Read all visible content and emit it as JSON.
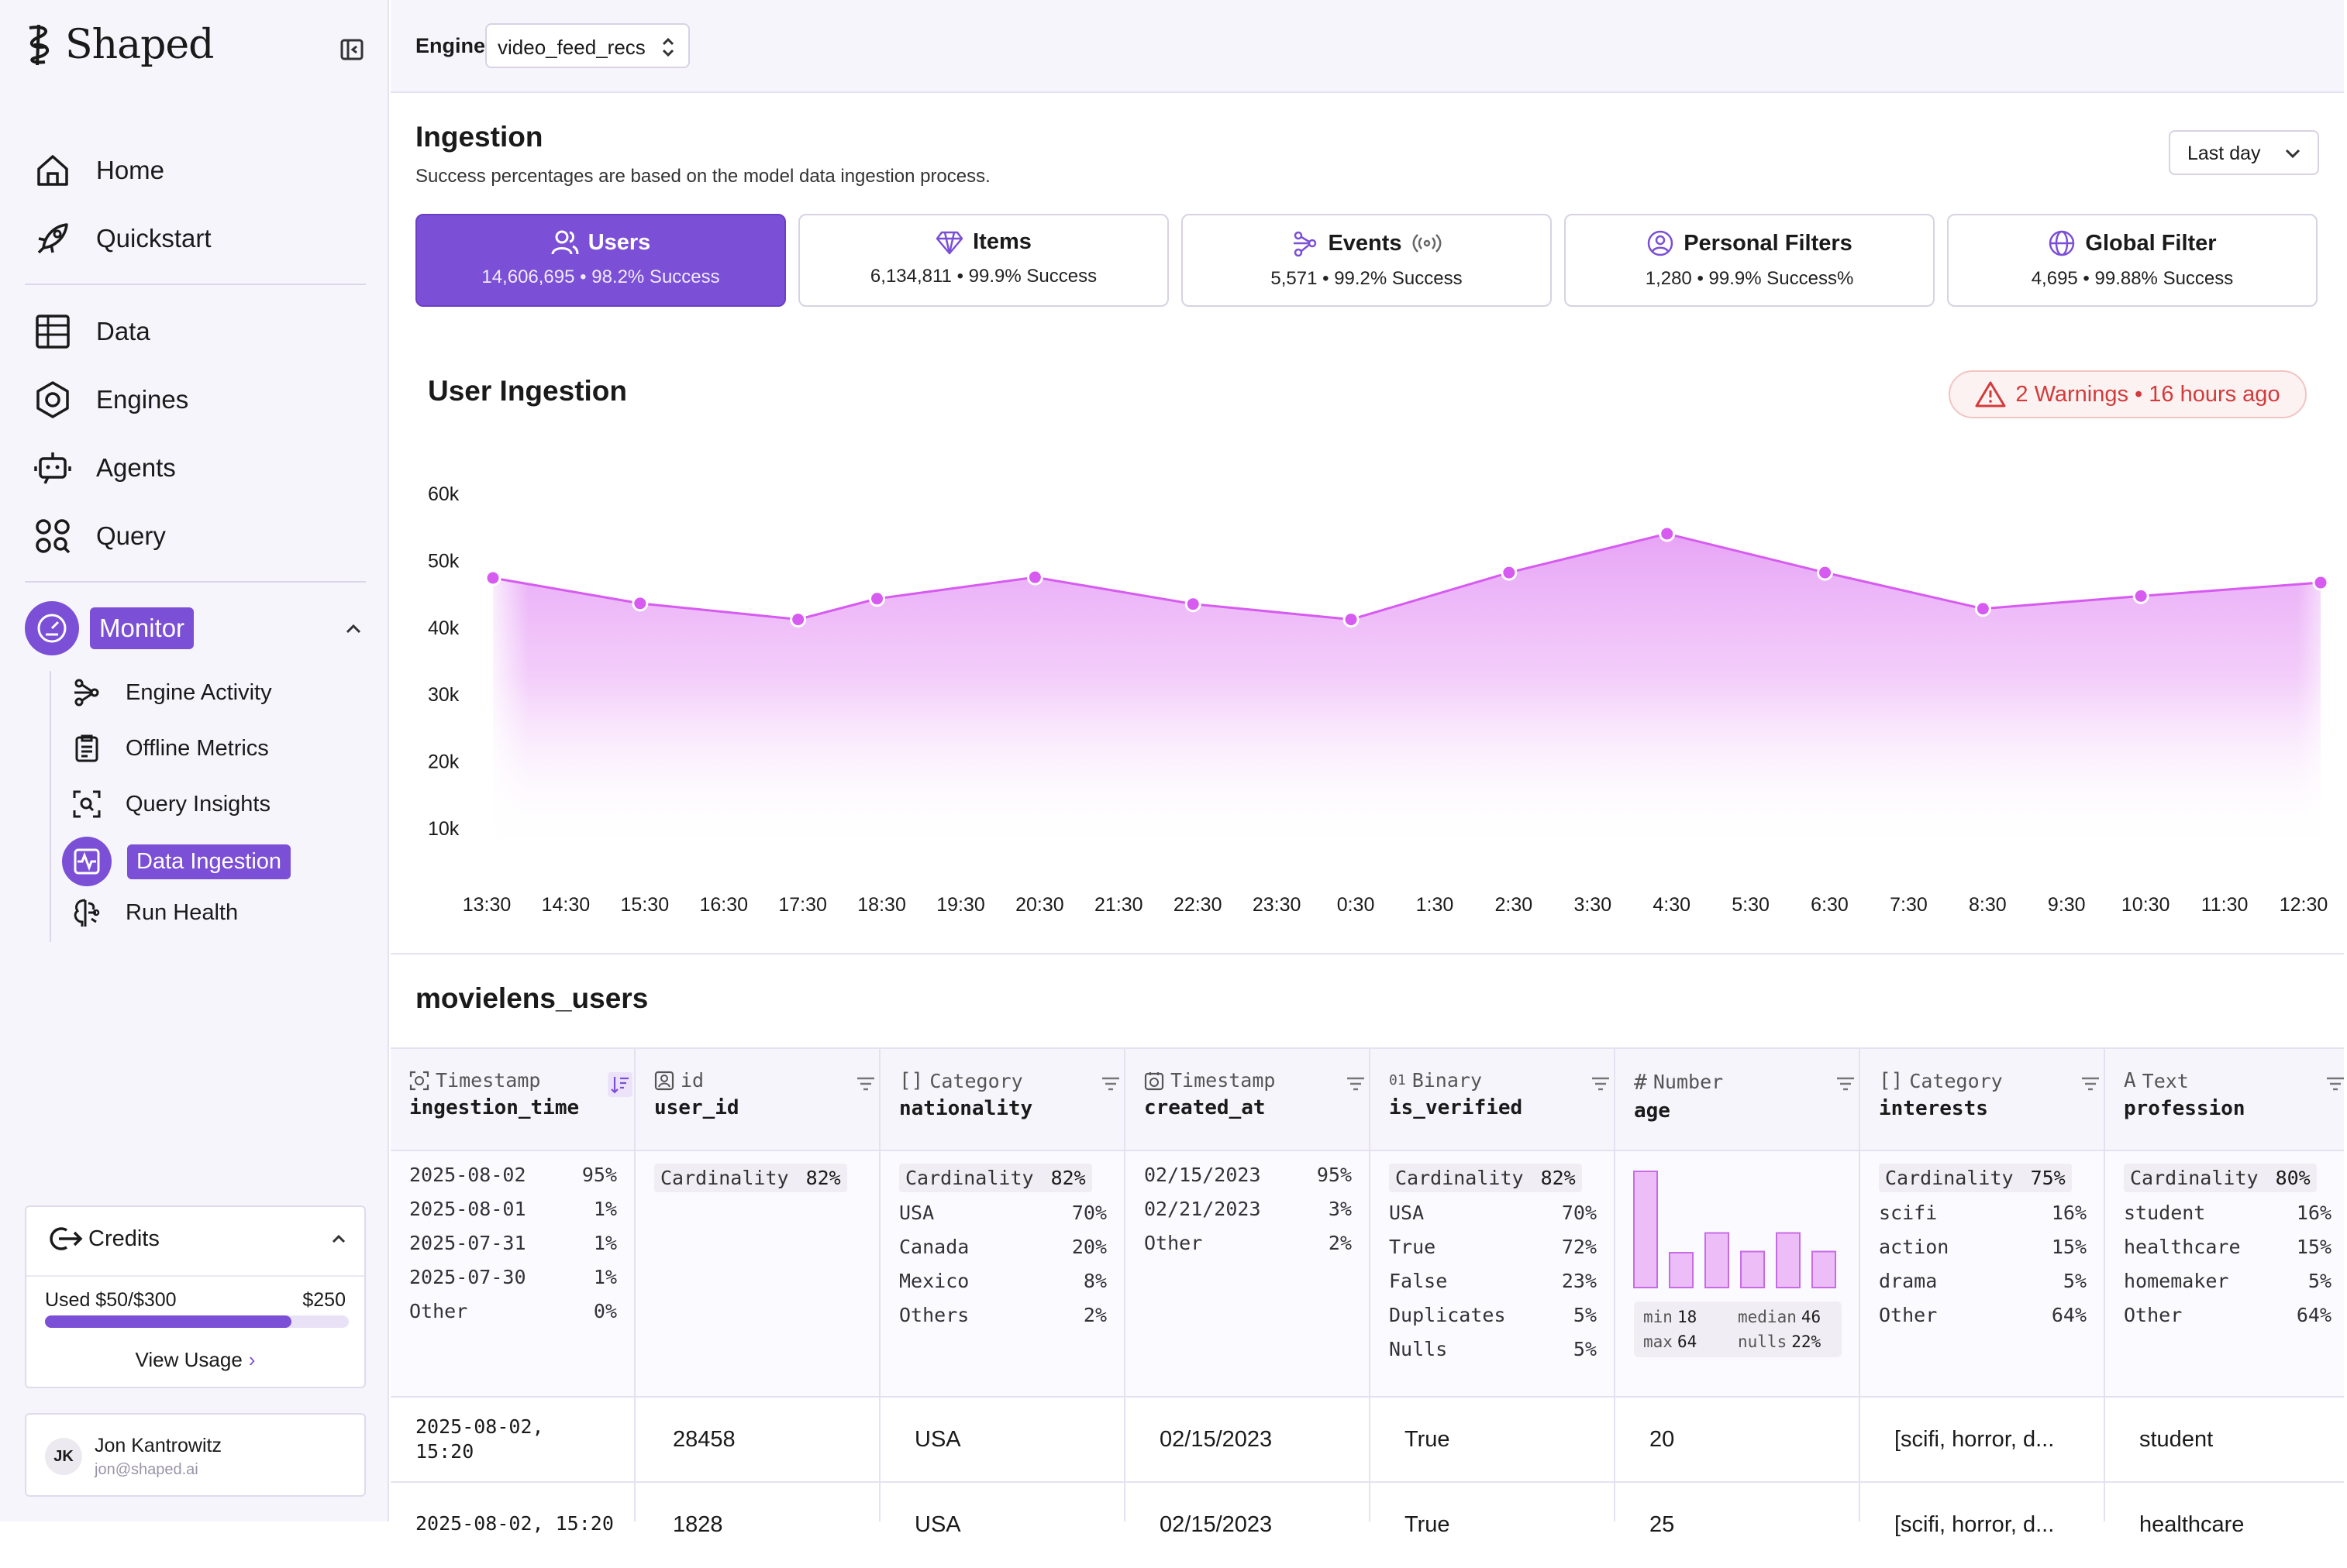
{
  "app": {
    "brand": "Shaped"
  },
  "sidebar": {
    "nav": [
      {
        "label": "Home",
        "icon": "home-icon"
      },
      {
        "label": "Quickstart",
        "icon": "rocket-icon"
      },
      {
        "label": "Data",
        "icon": "table-icon"
      },
      {
        "label": "Engines",
        "icon": "hexagon-icon"
      },
      {
        "label": "Agents",
        "icon": "robot-icon"
      },
      {
        "label": "Query",
        "icon": "query-icon"
      }
    ],
    "monitor": {
      "label": "Monitor",
      "items": [
        {
          "label": "Engine Activity",
          "icon": "activity-icon"
        },
        {
          "label": "Offline Metrics",
          "icon": "clipboard-icon"
        },
        {
          "label": "Query Insights",
          "icon": "scan-search-icon"
        },
        {
          "label": "Data Ingestion",
          "icon": "pulse-icon",
          "active": true
        },
        {
          "label": "Run Health",
          "icon": "brain-icon"
        }
      ]
    },
    "credits": {
      "title": "Credits",
      "used": "Used $50/$300",
      "limit": "$250",
      "fraction": 0.81,
      "view_usage": "View Usage"
    },
    "user": {
      "initials": "JK",
      "name": "Jon Kantrowitz",
      "email": "jon@shaped.ai"
    }
  },
  "topbar": {
    "engine_label": "Engine",
    "engine_value": "video_feed_recs"
  },
  "ingestion": {
    "title": "Ingestion",
    "subtitle": "Success percentages are based on the model data ingestion process.",
    "period": "Last day",
    "cards": [
      {
        "title": "Users",
        "stat": "14,606,695 • 98.2% Success",
        "icon": "users-icon",
        "active": true
      },
      {
        "title": "Items",
        "stat": "6,134,811 • 99.9% Success",
        "icon": "diamond-icon"
      },
      {
        "title": "Events",
        "stat": "5,571 • 99.2% Success",
        "icon": "events-icon"
      },
      {
        "title": "Personal Filters",
        "stat": "1,280 • 99.9% Success%",
        "icon": "user-circle-icon"
      },
      {
        "title": "Global Filter",
        "stat": "4,695 • 99.88% Success",
        "icon": "globe-icon"
      }
    ]
  },
  "chart_section": {
    "title": "User Ingestion",
    "warning": "2 Warnings • 16 hours ago"
  },
  "chart_data": {
    "type": "area",
    "title": "User Ingestion",
    "x": [
      "13:30",
      "14:30",
      "15:30",
      "16:30",
      "17:30",
      "18:30",
      "19:30",
      "20:30",
      "21:30",
      "22:30",
      "23:30",
      "0:30",
      "1:30",
      "2:30",
      "3:30",
      "4:30",
      "5:30",
      "6:30",
      "7:30",
      "8:30",
      "9:30",
      "10:30",
      "11:30",
      "12:30"
    ],
    "y_ticks": [
      "10k",
      "20k",
      "30k",
      "40k",
      "50k",
      "60k"
    ],
    "ylim": [
      10000,
      60000
    ],
    "points": [
      {
        "x": "13:30",
        "y": 47500
      },
      {
        "x": "15:30",
        "y": 43700
      },
      {
        "x": "17:30",
        "y": 41300
      },
      {
        "x": "18:30",
        "y": 44400
      },
      {
        "x": "20:30",
        "y": 47600
      },
      {
        "x": "22:30",
        "y": 43600
      },
      {
        "x": "0:30",
        "y": 41300
      },
      {
        "x": "2:30",
        "y": 48300
      },
      {
        "x": "4:30",
        "y": 54100
      },
      {
        "x": "6:30",
        "y": 48300
      },
      {
        "x": "8:30",
        "y": 42900
      },
      {
        "x": "10:30",
        "y": 44800
      },
      {
        "x": "12:30",
        "y": 46800
      }
    ],
    "color": "#d75bf0"
  },
  "table": {
    "title": "movielens_users",
    "columns": [
      {
        "type": "Timestamp",
        "name": "ingestion_time",
        "icon": "timestamp-icon"
      },
      {
        "type": "id",
        "name": "user_id",
        "icon": "id-icon"
      },
      {
        "type": "Category",
        "name": "nationality",
        "icon": "category-icon"
      },
      {
        "type": "Timestamp",
        "name": "created_at",
        "icon": "clock-icon"
      },
      {
        "type": "Binary",
        "name": "is_verified",
        "icon": "binary-icon"
      },
      {
        "type": "Number",
        "name": "age",
        "icon": "hash-icon"
      },
      {
        "type": "Category",
        "name": "interests",
        "icon": "category-icon"
      },
      {
        "type": "Text",
        "name": "profession",
        "icon": "text-icon"
      }
    ],
    "stats": {
      "ingestion_time": [
        [
          "2025-08-02",
          "95%"
        ],
        [
          "2025-08-01",
          "1%"
        ],
        [
          "2025-07-31",
          "1%"
        ],
        [
          "2025-07-30",
          "1%"
        ],
        [
          "Other",
          "0%"
        ]
      ],
      "user_id": {
        "cardinality_label": "Cardinality",
        "cardinality": "82%"
      },
      "nationality": {
        "cardinality_label": "Cardinality",
        "cardinality": "82%",
        "rows": [
          [
            "USA",
            "70%"
          ],
          [
            "Canada",
            "20%"
          ],
          [
            "Mexico",
            "8%"
          ],
          [
            "Others",
            "2%"
          ]
        ]
      },
      "created_at": [
        [
          "02/15/2023",
          "95%"
        ],
        [
          "02/21/2023",
          "3%"
        ],
        [
          "Other",
          "2%"
        ]
      ],
      "is_verified": {
        "cardinality_label": "Cardinality",
        "cardinality": "82%",
        "rows": [
          [
            "USA",
            "70%"
          ],
          [
            "True",
            "72%"
          ],
          [
            "False",
            "23%"
          ],
          [
            "Duplicates",
            "5%"
          ],
          [
            "Nulls",
            "5%"
          ]
        ]
      },
      "age": {
        "histogram": [
          1.0,
          0.3,
          0.47,
          0.31,
          0.47,
          0.31
        ],
        "min_label": "min",
        "min": "18",
        "median_label": "median",
        "median": "46",
        "max_label": "max",
        "max": "64",
        "nulls_label": "nulls",
        "nulls": "22%"
      },
      "interests": {
        "cardinality_label": "Cardinality",
        "cardinality": "75%",
        "rows": [
          [
            "scifi",
            "16%"
          ],
          [
            "action",
            "15%"
          ],
          [
            "drama",
            "5%"
          ],
          [
            "Other",
            "64%"
          ]
        ]
      },
      "profession": {
        "cardinality_label": "Cardinality",
        "cardinality": "80%",
        "rows": [
          [
            "student",
            "16%"
          ],
          [
            "healthcare",
            "15%"
          ],
          [
            "homemaker",
            "5%"
          ],
          [
            "Other",
            "64%"
          ]
        ]
      }
    },
    "rows": [
      [
        "2025-08-02,\n15:20",
        "28458",
        "USA",
        "02/15/2023",
        "True",
        "20",
        "[scifi, horror, d...",
        "student"
      ],
      [
        "2025-08-02, 15:20",
        "1828",
        "USA",
        "02/15/2023",
        "True",
        "25",
        "[scifi, horror, d...",
        "healthcare"
      ]
    ]
  }
}
